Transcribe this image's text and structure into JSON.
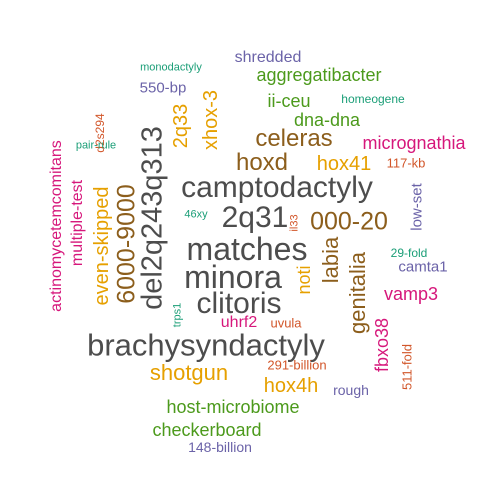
{
  "words": {
    "camptodactyly": "camptodactyly",
    "matches": "matches",
    "minora": "minora",
    "clitoris": "clitoris",
    "brachysyndactyly": "brachysyndactyly",
    "2q31": "2q31",
    "del2q243q313": "del2q243q313",
    "6000-9000": "6000-9000",
    "000-20": "000-20",
    "hoxd": "hoxd",
    "celeras": "celeras",
    "labia": "labia",
    "genitalia": "genitalia",
    "shotgun": "shotgun",
    "hox4h": "hox4h",
    "hox41": "hox41",
    "xhox-3": "xhox-3",
    "2q33": "2q33",
    "even-skipped": "even-skipped",
    "noti": "noti",
    "aggregatibacter": "aggregatibacter",
    "dna-dna": "dna-dna",
    "ii-ceu": "ii-ceu",
    "host-microbiome": "host-microbiome",
    "checkerboard": "checkerboard",
    "micrognathia": "micrognathia",
    "vamp3": "vamp3",
    "fbxo38": "fbxo38",
    "uhrf2": "uhrf2",
    "multiple-test": "multiple-test",
    "actinomycetemcomitans": "actinomycetemcomitans",
    "shredded": "shredded",
    "550-bp": "550-bp",
    "camta1": "camta1",
    "low-set": "low-set",
    "148-billion": "148-billion",
    "rough": "rough",
    "511-fold": "511-fold",
    "291-billion": "291-billion",
    "117-kb": "117-kb",
    "uvula": "uvula",
    "d2s294": "d2s294",
    "il33": "il33",
    "monodactyly": "monodactyly",
    "homeogene": "homeogene",
    "pair-rule": "pair-rule",
    "46xy": "46xy",
    "29-fold": "29-fold",
    "trps1": "trps1"
  },
  "colors": {
    "grey": "#4d4d4d",
    "brown": "#8c5e1c",
    "orange": "#e6a000",
    "green": "#4c9a1c",
    "purple": "#6b63a8",
    "pink": "#d6177b",
    "rust": "#d2562a",
    "teal": "#1b9e77"
  }
}
